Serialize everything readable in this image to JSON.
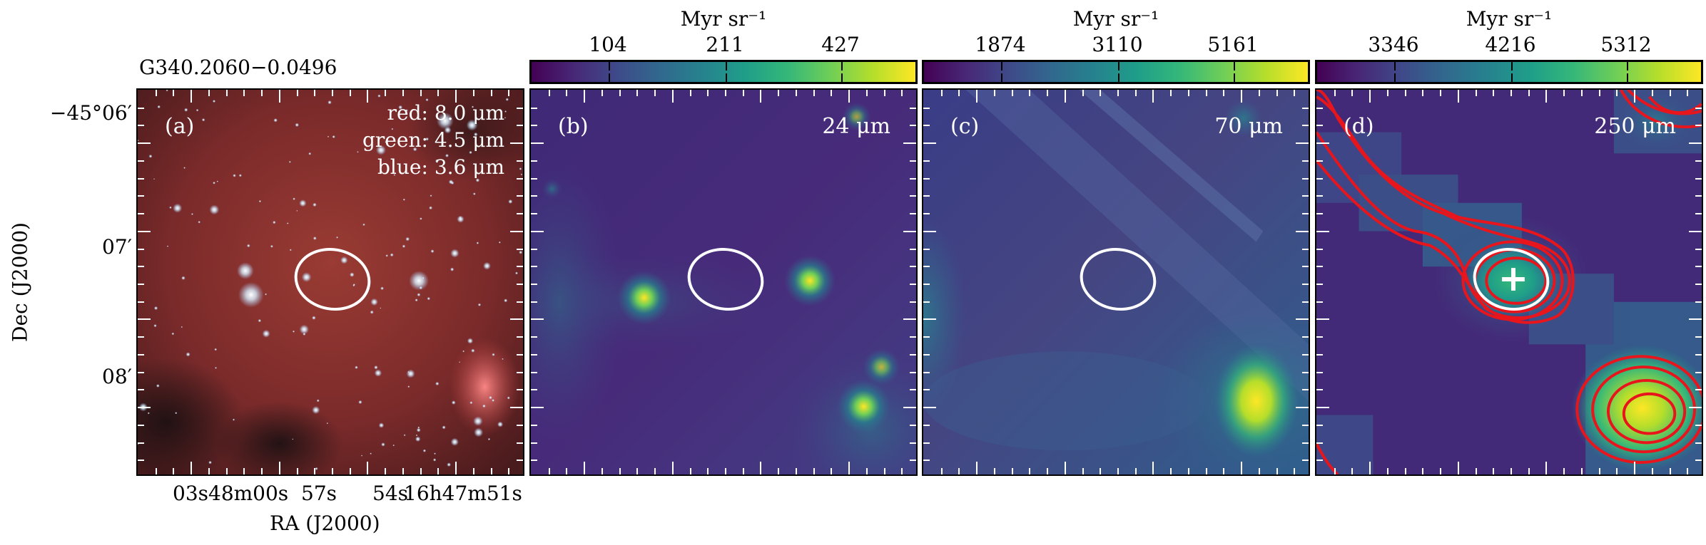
{
  "source_name": "G340.2060−0.0496",
  "axes": {
    "ylabel": "Dec (J2000)",
    "xlabel": "RA (J2000)",
    "yticks": [
      "−45°06′",
      "07′",
      "08′"
    ],
    "xticks": [
      "03s",
      "48m00s",
      "57s",
      "54s",
      "16h47m51s"
    ]
  },
  "panels": [
    {
      "id": "a",
      "label": "(a)",
      "legend": [
        "red: 8.0 μm",
        "green: 4.5 μm",
        "blue: 3.6 μm"
      ]
    },
    {
      "id": "b",
      "label": "(b)",
      "wavelength": "24 μm",
      "colorbar": {
        "unit": "Myr sr⁻¹",
        "ticks": [
          "104",
          "211",
          "427"
        ]
      }
    },
    {
      "id": "c",
      "label": "(c)",
      "wavelength": "70 μm",
      "colorbar": {
        "unit": "Myr sr⁻¹",
        "ticks": [
          "1874",
          "3110",
          "5161"
        ]
      }
    },
    {
      "id": "d",
      "label": "(d)",
      "wavelength": "250 μm",
      "colorbar": {
        "unit": "Myr sr⁻¹",
        "ticks": [
          "3346",
          "4216",
          "5312"
        ]
      }
    }
  ],
  "colors": {
    "ellipse": "#ffffff",
    "contours": "#e8161c",
    "cross": "#ffffff",
    "cmap_low": "#440154",
    "cmap_high": "#fde725"
  }
}
